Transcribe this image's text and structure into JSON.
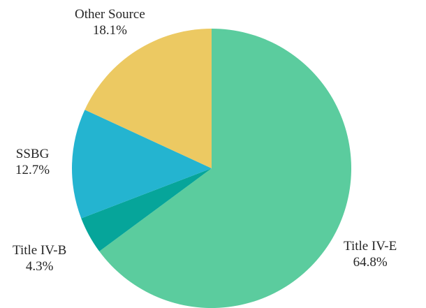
{
  "chart_data": {
    "type": "pie",
    "title": "",
    "start_angle_deg": 0,
    "direction": "clockwise",
    "slices": [
      {
        "label": "Title IV-E",
        "value": 64.8,
        "value_label": "64.8%",
        "color": "#5BCC9E"
      },
      {
        "label": "Title IV-B",
        "value": 4.3,
        "value_label": "4.3%",
        "color": "#06A59A"
      },
      {
        "label": "SSBG",
        "value": 12.7,
        "value_label": "12.7%",
        "color": "#24B4D0"
      },
      {
        "label": "Other Source",
        "value": 18.1,
        "value_label": "18.1%",
        "color": "#ECC962"
      }
    ],
    "legend": "none",
    "labels": "outside"
  }
}
